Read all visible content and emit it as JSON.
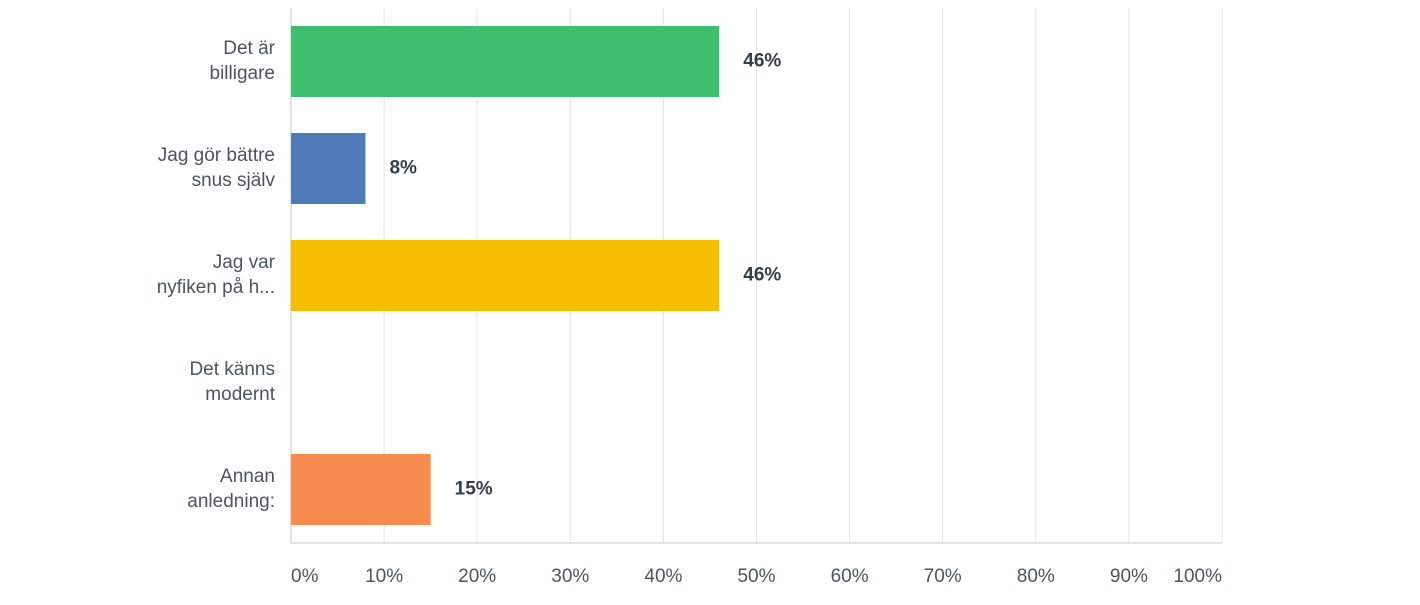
{
  "chart_data": {
    "type": "hbar",
    "categories": [
      [
        "Det är",
        "billigare"
      ],
      [
        "Jag gör bättre",
        "snus själv"
      ],
      [
        "Jag var",
        "nyfiken på h..."
      ],
      [
        "Det känns",
        "modernt"
      ],
      [
        "Annan",
        "anledning:"
      ]
    ],
    "values": [
      46,
      8,
      46,
      0,
      15
    ],
    "value_labels": [
      "46%",
      "8%",
      "46%",
      null,
      "15%"
    ],
    "colors": [
      "#3fbf6e",
      "#4f7cb8",
      "#f5be00",
      null,
      "#f78b4f"
    ],
    "xlim": [
      0,
      100
    ],
    "xticks": [
      {
        "value": 0,
        "label": "0%"
      },
      {
        "value": 10,
        "label": "10%"
      },
      {
        "value": 20,
        "label": "20%"
      },
      {
        "value": 30,
        "label": "30%"
      },
      {
        "value": 40,
        "label": "40%"
      },
      {
        "value": 50,
        "label": "50%"
      },
      {
        "value": 60,
        "label": "60%"
      },
      {
        "value": 70,
        "label": "70%"
      },
      {
        "value": 80,
        "label": "80%"
      },
      {
        "value": 90,
        "label": "90%"
      },
      {
        "value": 100,
        "label": "100%"
      }
    ],
    "grid": true
  }
}
